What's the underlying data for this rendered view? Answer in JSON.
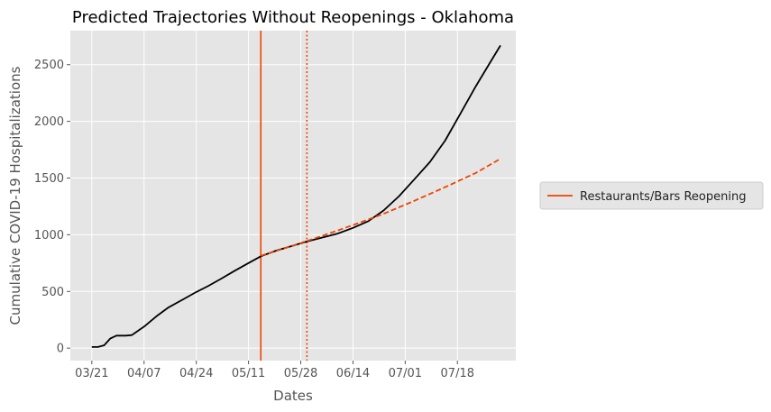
{
  "chart_data": {
    "type": "line",
    "title": "Predicted Trajectories Without Reopenings - Oklahoma",
    "xlabel": "Dates",
    "ylabel": "Cumulative COVID-19 Hospitalizations",
    "x_tick_labels": [
      "03/21",
      "04/07",
      "04/24",
      "05/11",
      "05/28",
      "06/14",
      "07/01",
      "07/18"
    ],
    "x_ticks": [
      "2020-03-21",
      "2020-04-07",
      "2020-04-24",
      "2020-05-11",
      "2020-05-28",
      "2020-06-14",
      "2020-07-01",
      "2020-07-18"
    ],
    "xlim": [
      "2020-03-14",
      "2020-08-06"
    ],
    "y_ticks": [
      0,
      500,
      1000,
      1500,
      2000,
      2500
    ],
    "ylim": [
      -110,
      2800
    ],
    "grid": true,
    "legend_position": "right",
    "reopening_line": {
      "label": "Restaurants/Bars Reopening",
      "date": "2020-05-15",
      "color": "#ee4400"
    },
    "dotted_line": {
      "date": "2020-05-30",
      "color": "#ee4400"
    },
    "series": [
      {
        "color": "#000000",
        "style": "solid",
        "points": [
          [
            "2020-03-21",
            10
          ],
          [
            "2020-03-23",
            10
          ],
          [
            "2020-03-25",
            25
          ],
          [
            "2020-03-27",
            85
          ],
          [
            "2020-03-29",
            110
          ],
          [
            "2020-04-01",
            110
          ],
          [
            "2020-04-03",
            115
          ],
          [
            "2020-04-07",
            190
          ],
          [
            "2020-04-11",
            280
          ],
          [
            "2020-04-15",
            360
          ],
          [
            "2020-04-20",
            435
          ],
          [
            "2020-04-24",
            495
          ],
          [
            "2020-04-28",
            550
          ],
          [
            "2020-05-02",
            610
          ],
          [
            "2020-05-06",
            675
          ],
          [
            "2020-05-10",
            735
          ],
          [
            "2020-05-15",
            810
          ],
          [
            "2020-05-20",
            860
          ],
          [
            "2020-05-25",
            900
          ],
          [
            "2020-05-30",
            940
          ],
          [
            "2020-06-04",
            975
          ],
          [
            "2020-06-09",
            1010
          ],
          [
            "2020-06-14",
            1060
          ],
          [
            "2020-06-19",
            1120
          ],
          [
            "2020-06-24",
            1215
          ],
          [
            "2020-06-29",
            1340
          ],
          [
            "2020-07-04",
            1490
          ],
          [
            "2020-07-09",
            1640
          ],
          [
            "2020-07-14",
            1830
          ],
          [
            "2020-07-19",
            2070
          ],
          [
            "2020-07-24",
            2310
          ],
          [
            "2020-07-28",
            2490
          ],
          [
            "2020-08-01",
            2670
          ]
        ]
      },
      {
        "color": "#ee4400",
        "style": "dashed",
        "points": [
          [
            "2020-05-15",
            815
          ],
          [
            "2020-05-25",
            900
          ],
          [
            "2020-06-04",
            990
          ],
          [
            "2020-06-14",
            1085
          ],
          [
            "2020-06-24",
            1185
          ],
          [
            "2020-07-04",
            1300
          ],
          [
            "2020-07-14",
            1420
          ],
          [
            "2020-07-24",
            1545
          ],
          [
            "2020-08-01",
            1670
          ]
        ]
      }
    ]
  }
}
